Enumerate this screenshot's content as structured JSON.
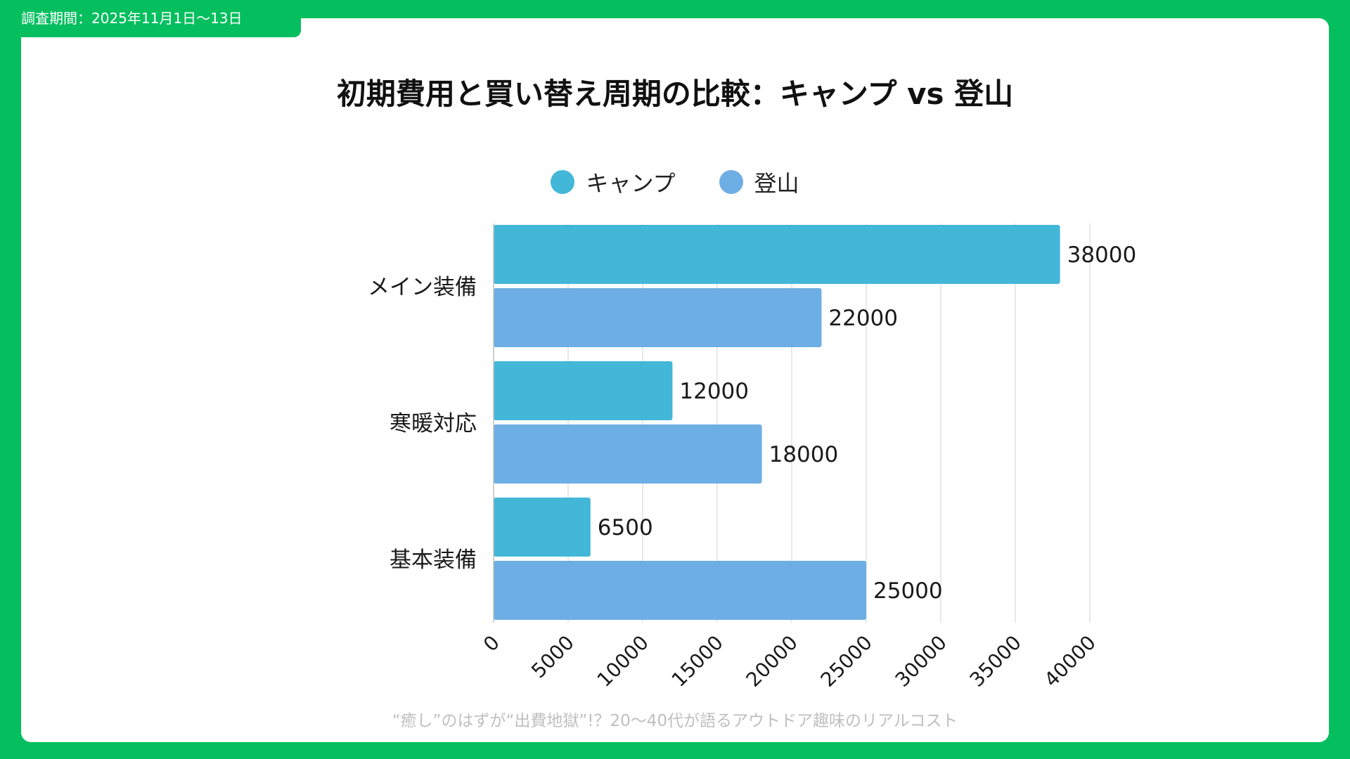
{
  "header": {
    "period_label": "調査期間：2025年11月1日〜13日"
  },
  "footer": {
    "caption": "“癒し”のはずが“出費地獄”!？20〜40代が語るアウトドア趣味のリアルコスト"
  },
  "colors": {
    "page_border": "#05BF5F",
    "camp": "#42B7D8",
    "mountain": "#6DAEE5",
    "grid": "#D9D9D9"
  },
  "chart_data": {
    "type": "bar",
    "orientation": "horizontal",
    "title": "初期費用と買い替え周期の比較：キャンプ vs 登山",
    "categories": [
      "メイン装備",
      "寒暖対応",
      "基本装備"
    ],
    "series": [
      {
        "name": "キャンプ",
        "values": [
          38000,
          12000,
          6500
        ]
      },
      {
        "name": "登山",
        "values": [
          22000,
          18000,
          25000
        ]
      }
    ],
    "xlim": [
      0,
      40000
    ],
    "xticks": [
      0,
      5000,
      10000,
      15000,
      20000,
      25000,
      30000,
      35000,
      40000
    ],
    "xtick_labels": [
      "0",
      "5000",
      "10000",
      "15000",
      "20000",
      "25000",
      "30000",
      "35000",
      "40000"
    ],
    "data_labels": true,
    "grid": "vertical",
    "legend_position": "top-center"
  }
}
